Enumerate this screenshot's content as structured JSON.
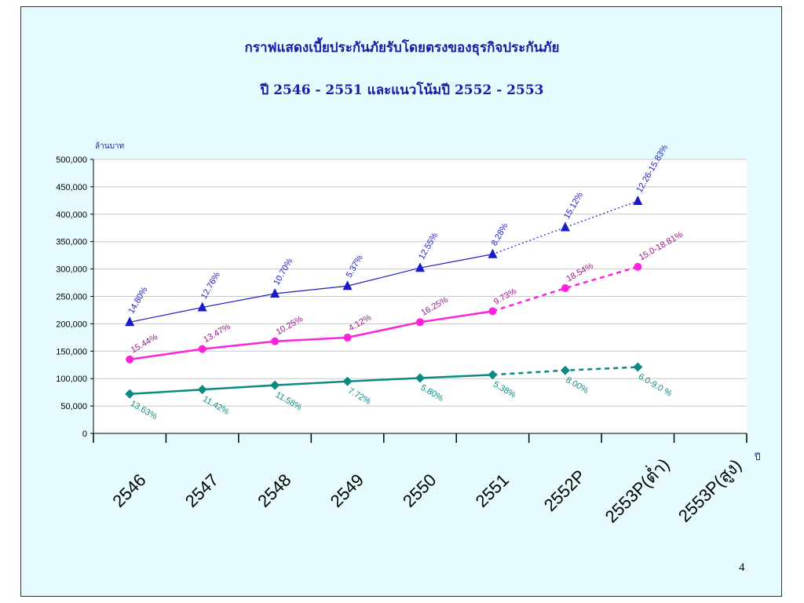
{
  "title_line1": "กราฟแสดงเบี้ยประกันภัยรับโดยตรงของธุรกิจประกันภัย",
  "title_line2": "ปี 2546 - 2551 และแนวโน้มปี 2552 - 2553",
  "page_number": "4",
  "chart_data": {
    "type": "line",
    "ylabel": "ล้านบาท",
    "xlabel": "ปี",
    "ylim": [
      0,
      500000
    ],
    "yticks": [
      0,
      50000,
      100000,
      150000,
      200000,
      250000,
      300000,
      350000,
      400000,
      450000,
      500000
    ],
    "ytick_labels": [
      "0",
      "50,000",
      "100,000",
      "150,000",
      "200,000",
      "250,000",
      "300,000",
      "350,000",
      "400,000",
      "450,000",
      "500,000"
    ],
    "categories": [
      "2546",
      "2547",
      "2548",
      "2549",
      "2550",
      "2551",
      "2552P",
      "2553P(ต่ำ)",
      "2553P(สูง)"
    ],
    "grid": true,
    "series": [
      {
        "color": "#1a1ac8",
        "marker": "triangle",
        "values": [
          203000,
          230000,
          255000,
          269000,
          302000,
          327000,
          376000,
          424000,
          null
        ],
        "labels": [
          "14.80%",
          "12.76%",
          "10.70%",
          "5.37%",
          "12.55%",
          "8.28%",
          "15.12%",
          "12.26-15.83%",
          ""
        ],
        "projected_from_index": 5
      },
      {
        "color": "#ff22dd",
        "marker": "circle",
        "values": [
          135000,
          154000,
          168000,
          175000,
          203000,
          223000,
          265000,
          304000,
          null
        ],
        "labels": [
          "15.44%",
          "13.47%",
          "10.25%",
          "4.12%",
          "16.25%",
          "9.73%",
          "18.54%",
          "15.0-18.81%",
          ""
        ],
        "projected_from_index": 5
      },
      {
        "color": "#0b8a82",
        "marker": "diamond",
        "values": [
          72000,
          80000,
          88000,
          95000,
          101000,
          107000,
          115000,
          121000,
          null
        ],
        "labels": [
          "13.63%",
          "11.42%",
          "11.58%",
          "7.72%",
          "5.80%",
          "5.38%",
          "8.00%",
          "6.0-9.0 %",
          ""
        ],
        "projected_from_index": 5
      }
    ]
  }
}
